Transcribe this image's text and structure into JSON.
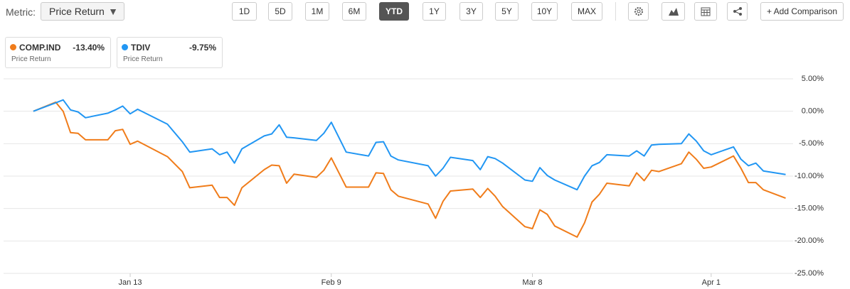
{
  "toolbar": {
    "metric_label": "Metric:",
    "metric_value": "Price Return",
    "ranges": [
      "1D",
      "5D",
      "1M",
      "6M",
      "YTD",
      "1Y",
      "3Y",
      "5Y",
      "10Y",
      "MAX"
    ],
    "active": "YTD",
    "add_comparison": "+ Add Comparison"
  },
  "chart_data": {
    "type": "line",
    "x": [
      "Dec 31",
      "Jan 3",
      "Jan 4",
      "Jan 5",
      "Jan 6",
      "Jan 7",
      "Jan 10",
      "Jan 11",
      "Jan 12",
      "Jan 13",
      "Jan 14",
      "Jan 18",
      "Jan 20",
      "Jan 21",
      "Jan 24",
      "Jan 25",
      "Jan 26",
      "Jan 27",
      "Jan 28",
      "Jan 31",
      "Feb 1",
      "Feb 2",
      "Feb 3",
      "Feb 4",
      "Feb 7",
      "Feb 8",
      "Feb 9",
      "Feb 11",
      "Feb 14",
      "Feb 15",
      "Feb 16",
      "Feb 17",
      "Feb 18",
      "Feb 22",
      "Feb 23",
      "Feb 24",
      "Feb 25",
      "Feb 28",
      "Mar 1",
      "Mar 2",
      "Mar 3",
      "Mar 4",
      "Mar 7",
      "Mar 8",
      "Mar 9",
      "Mar 10",
      "Mar 11",
      "Mar 14",
      "Mar 15",
      "Mar 16",
      "Mar 17",
      "Mar 18",
      "Mar 21",
      "Mar 22",
      "Mar 23",
      "Mar 24",
      "Mar 25",
      "Mar 28",
      "Mar 29",
      "Mar 30",
      "Mar 31",
      "Apr 1",
      "Apr 4",
      "Apr 5",
      "Apr 6",
      "Apr 7",
      "Apr 8",
      "Apr 11"
    ],
    "series": [
      {
        "name": "COMP.IND",
        "color": "#f07c1a",
        "legend_value": "-13.40%",
        "values": [
          0,
          1.4,
          0.0,
          -3.3,
          -3.4,
          -4.4,
          -4.4,
          -3.0,
          -2.8,
          -5.1,
          -4.6,
          -7.0,
          -9.3,
          -11.8,
          -11.4,
          -13.3,
          -13.3,
          -14.5,
          -11.8,
          -9.0,
          -8.3,
          -8.4,
          -11.1,
          -9.7,
          -10.2,
          -9.1,
          -7.2,
          -11.7,
          -11.7,
          -9.5,
          -9.6,
          -12.1,
          -13.1,
          -14.3,
          -16.5,
          -13.9,
          -12.3,
          -12.0,
          -13.3,
          -11.9,
          -13.1,
          -14.7,
          -17.8,
          -18.1,
          -15.2,
          -15.9,
          -17.7,
          -19.4,
          -17.2,
          -14.0,
          -12.8,
          -11.1,
          -11.5,
          -9.5,
          -10.7,
          -9.1,
          -9.3,
          -8.1,
          -6.3,
          -7.4,
          -8.8,
          -8.6,
          -6.9,
          -8.8,
          -11.0,
          -11.0,
          -12.1,
          -13.4
        ]
      },
      {
        "name": "TDIV",
        "color": "#2196f3",
        "legend_value": "-9.75%",
        "values": [
          0,
          1.3,
          1.75,
          0.2,
          -0.1,
          -1.0,
          -0.3,
          0.2,
          0.8,
          -0.4,
          0.3,
          -2.0,
          -4.7,
          -6.3,
          -5.8,
          -6.7,
          -6.3,
          -8.0,
          -5.8,
          -3.8,
          -3.5,
          -2.1,
          -4.0,
          -4.1,
          -4.5,
          -3.4,
          -1.7,
          -6.3,
          -6.9,
          -4.8,
          -4.7,
          -6.9,
          -7.5,
          -8.4,
          -10.0,
          -8.8,
          -7.1,
          -7.6,
          -9.0,
          -7.0,
          -7.3,
          -8.0,
          -10.6,
          -10.8,
          -8.7,
          -9.9,
          -10.6,
          -12.1,
          -10.0,
          -8.4,
          -7.9,
          -6.7,
          -6.9,
          -6.1,
          -6.9,
          -5.2,
          -5.1,
          -5.0,
          -3.5,
          -4.6,
          -6.1,
          -6.7,
          -5.5,
          -7.4,
          -8.4,
          -8.0,
          -9.2,
          -9.75
        ]
      }
    ],
    "legend_subtitle": "Price Return",
    "xlim": [
      "Dec 27",
      "Apr 12"
    ],
    "xticks": [
      "Jan 13",
      "Feb 9",
      "Mar 8",
      "Apr 1"
    ],
    "ylim": [
      -25,
      5
    ],
    "yticks": [
      {
        "value": 5,
        "label": "5.00%"
      },
      {
        "value": 0,
        "label": "0.00%"
      },
      {
        "value": -5,
        "label": "-5.00%"
      },
      {
        "value": -10,
        "label": "-10.00%"
      },
      {
        "value": -15,
        "label": "-15.00%"
      },
      {
        "value": -20,
        "label": "-20.00%"
      },
      {
        "value": -25,
        "label": "-25.00%"
      }
    ],
    "grid": true
  }
}
